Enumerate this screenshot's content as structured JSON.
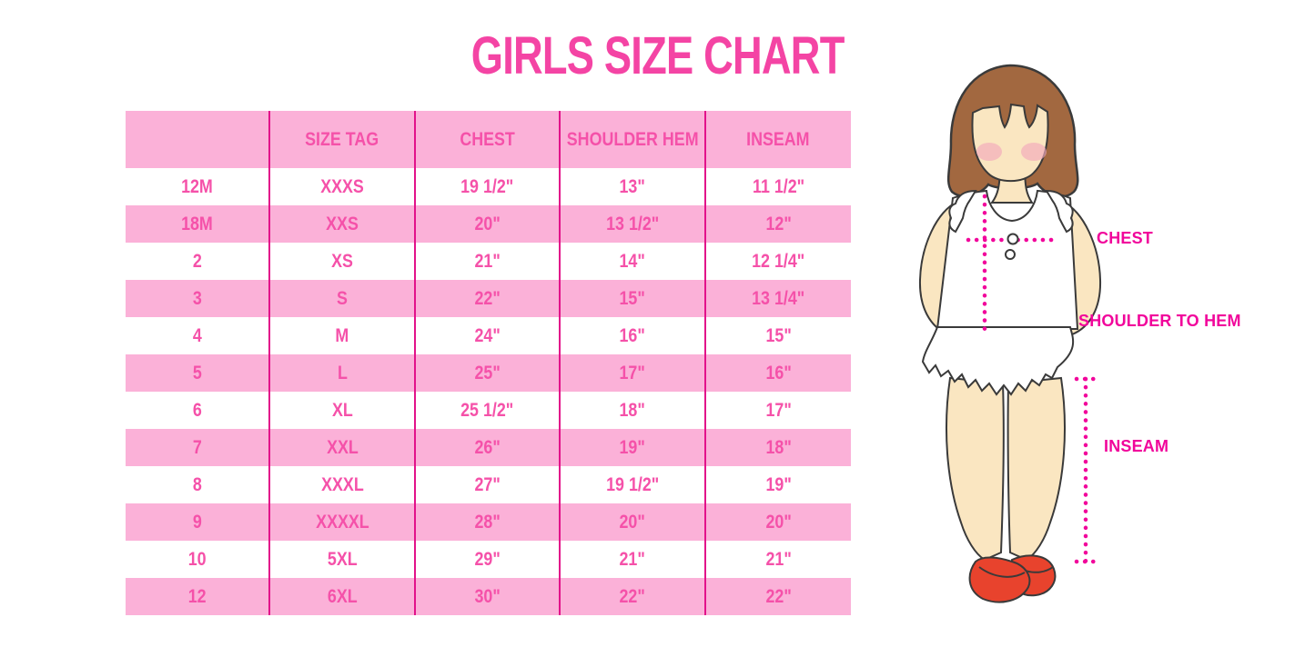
{
  "title": "GIRLS SIZE CHART",
  "table": {
    "columns": [
      "",
      "SIZE TAG",
      "CHEST",
      "SHOULDER HEM",
      "INSEAM"
    ],
    "rows": [
      [
        "12M",
        "XXXS",
        "19 1/2\"",
        "13\"",
        "11 1/2\""
      ],
      [
        "18M",
        "XXS",
        "20\"",
        "13 1/2\"",
        "12\""
      ],
      [
        "2",
        "XS",
        "21\"",
        "14\"",
        "12 1/4\""
      ],
      [
        "3",
        "S",
        "22\"",
        "15\"",
        "13 1/4\""
      ],
      [
        "4",
        "M",
        "24\"",
        "16\"",
        "15\""
      ],
      [
        "5",
        "L",
        "25\"",
        "17\"",
        "16\""
      ],
      [
        "6",
        "XL",
        "25 1/2\"",
        "18\"",
        "17\""
      ],
      [
        "7",
        "XXL",
        "26\"",
        "19\"",
        "18\""
      ],
      [
        "8",
        "XXXL",
        "27\"",
        "19 1/2\"",
        "19\""
      ],
      [
        "9",
        "XXXXL",
        "28\"",
        "20\"",
        "20\""
      ],
      [
        "10",
        "5XL",
        "29\"",
        "21\"",
        "21\""
      ],
      [
        "12",
        "6XL",
        "30\"",
        "22\"",
        "22\""
      ]
    ]
  },
  "figure": {
    "chest_label": "CHEST",
    "shoulder_to_hem_label": "SHOULDER TO HEM",
    "inseam_label": "INSEAM"
  },
  "colors": {
    "title_pink": "#F444A4",
    "table_text_pink": "#F551A9",
    "row_pink": "#FBB1D8",
    "divider_magenta": "#E2128A",
    "label_magenta": "#F1059B",
    "hair_brown": "#A26840",
    "skin_tan": "#FAE6C1",
    "blush_pink": "#F3A9BB",
    "shoe_red": "#E8432D",
    "outline": "#3A3A3A",
    "background": "#FFFFFF"
  }
}
